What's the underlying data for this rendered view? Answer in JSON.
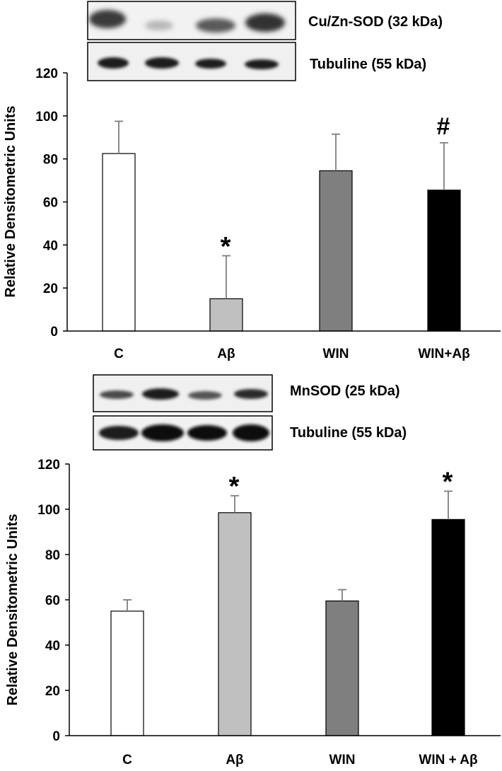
{
  "chart_data": [
    {
      "type": "bar",
      "ylabel": "Relative Densitometric Units",
      "ylim": [
        0,
        120
      ],
      "yticks": [
        0,
        20,
        40,
        60,
        80,
        100,
        120
      ],
      "categories": [
        "C",
        "Aβ",
        "WIN",
        "WIN+Aβ"
      ],
      "values": [
        82.5,
        15,
        74.5,
        65.5
      ],
      "errors": [
        15,
        20,
        17,
        22
      ],
      "colors": [
        "#ffffff",
        "#c0c0c0",
        "#7f7f7f",
        "#000000"
      ],
      "significance": [
        "",
        "*",
        "",
        "#"
      ],
      "blots": [
        {
          "label": "Cu/Zn-SOD (32 kDa)"
        },
        {
          "label": "Tubuline (55 kDa)"
        }
      ]
    },
    {
      "type": "bar",
      "ylabel": "Relative Densitometric Units",
      "ylim": [
        0,
        120
      ],
      "yticks": [
        0,
        20,
        40,
        60,
        80,
        100,
        120
      ],
      "categories": [
        "C",
        "Aβ",
        "WIN",
        "WIN + Aβ"
      ],
      "values": [
        55,
        98.5,
        59.5,
        95.5
      ],
      "errors": [
        5,
        7.5,
        5,
        12.5
      ],
      "colors": [
        "#ffffff",
        "#c0c0c0",
        "#7f7f7f",
        "#000000"
      ],
      "significance": [
        "",
        "*",
        "",
        "*"
      ],
      "blots": [
        {
          "label": "MnSOD (25 kDa)"
        },
        {
          "label": "Tubuline (55 kDa)"
        }
      ]
    }
  ]
}
